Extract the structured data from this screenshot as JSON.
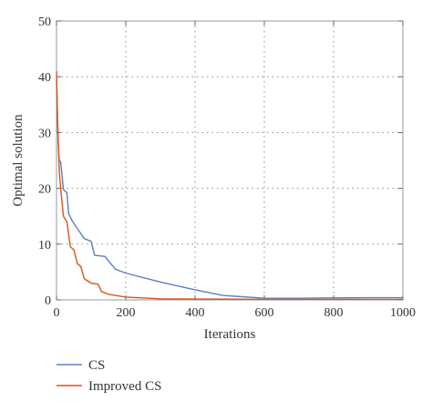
{
  "chart_data": {
    "type": "line",
    "title": "",
    "xlabel": "Iterations",
    "ylabel": "Optimal solution",
    "xlim": [
      0,
      1000
    ],
    "ylim": [
      0,
      50
    ],
    "xticks": [
      0,
      200,
      400,
      600,
      800,
      1000
    ],
    "yticks": [
      0,
      10,
      20,
      30,
      40,
      50
    ],
    "xtick_labels": [
      "0",
      "200",
      "400",
      "600",
      "800",
      "1000"
    ],
    "ytick_labels": [
      "0",
      "10",
      "20",
      "30",
      "40",
      "50"
    ],
    "grid": true,
    "legend_position": "bottom-left",
    "series": [
      {
        "name": "CS",
        "color": "#5b7fbf",
        "x": [
          0,
          2,
          5,
          8,
          12,
          20,
          30,
          35,
          45,
          60,
          80,
          100,
          110,
          140,
          150,
          170,
          200,
          300,
          400,
          480,
          600,
          700,
          800,
          900,
          1000
        ],
        "y": [
          39.5,
          35,
          28,
          25,
          24.7,
          19.8,
          19.2,
          15.5,
          14.2,
          12.8,
          11,
          10.5,
          8,
          7.8,
          7,
          5.5,
          4.8,
          3.2,
          1.8,
          0.8,
          0.3,
          0.3,
          0.35,
          0.4,
          0.4
        ]
      },
      {
        "name": "Improved CS",
        "color": "#d9541e",
        "x": [
          0,
          3,
          8,
          12,
          20,
          30,
          40,
          50,
          60,
          70,
          80,
          100,
          120,
          130,
          150,
          200,
          300,
          400,
          600,
          800,
          1000
        ],
        "y": [
          41,
          32,
          23,
          20,
          15,
          14,
          9.5,
          9,
          6.5,
          6,
          3.8,
          3,
          2.8,
          1.5,
          1,
          0.5,
          0.2,
          0.15,
          0.1,
          0.1,
          0.1
        ]
      }
    ]
  }
}
